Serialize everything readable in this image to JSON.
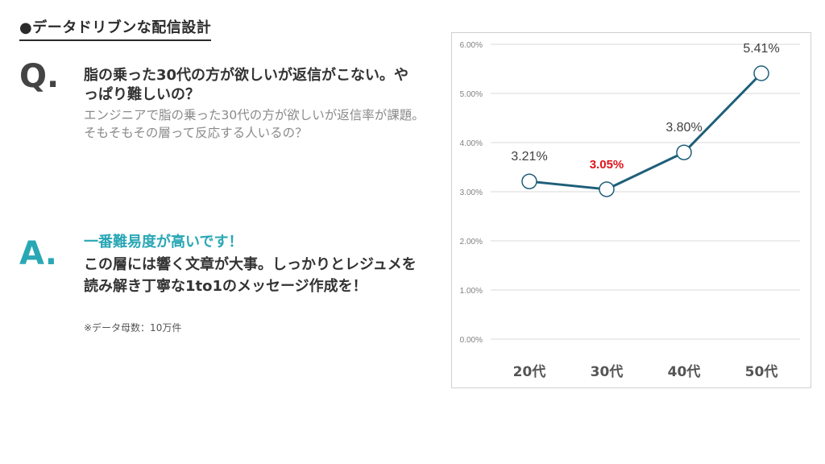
{
  "header": {
    "title": "●データドリブンな配信設計"
  },
  "question": {
    "letter": "Q.",
    "heading": "脂の乗った30代の方が欲しいが返信がこない。やっぱり難しいの？",
    "body": "エンジニアで脂の乗った30代の方が欲しいが返信率が課題。そもそもその層って反応する人いるの？"
  },
  "answer": {
    "letter": "A.",
    "highlight": "一番難易度が高いです！",
    "body": "この層には響く文章が大事。しっかりとレジュメを読み解き丁寧な1to1のメッセージ作成を！",
    "note": "※データ母数：10万件"
  },
  "colors": {
    "accent": "#2aa7b5",
    "line": "#1f5f7a",
    "highlight_label": "#e0121b"
  },
  "chart_data": {
    "type": "line",
    "categories": [
      "20代",
      "30代",
      "40代",
      "50代"
    ],
    "values": [
      3.21,
      3.05,
      3.8,
      5.41
    ],
    "data_labels": [
      "3.21%",
      "3.05%",
      "3.80%",
      "5.41%"
    ],
    "highlight_index": 1,
    "y_ticks": [
      "0.00%",
      "1.00%",
      "2.00%",
      "3.00%",
      "4.00%",
      "5.00%",
      "6.00%"
    ],
    "ylim": [
      0,
      6
    ],
    "grid": true,
    "title": "",
    "xlabel": "",
    "ylabel": ""
  }
}
